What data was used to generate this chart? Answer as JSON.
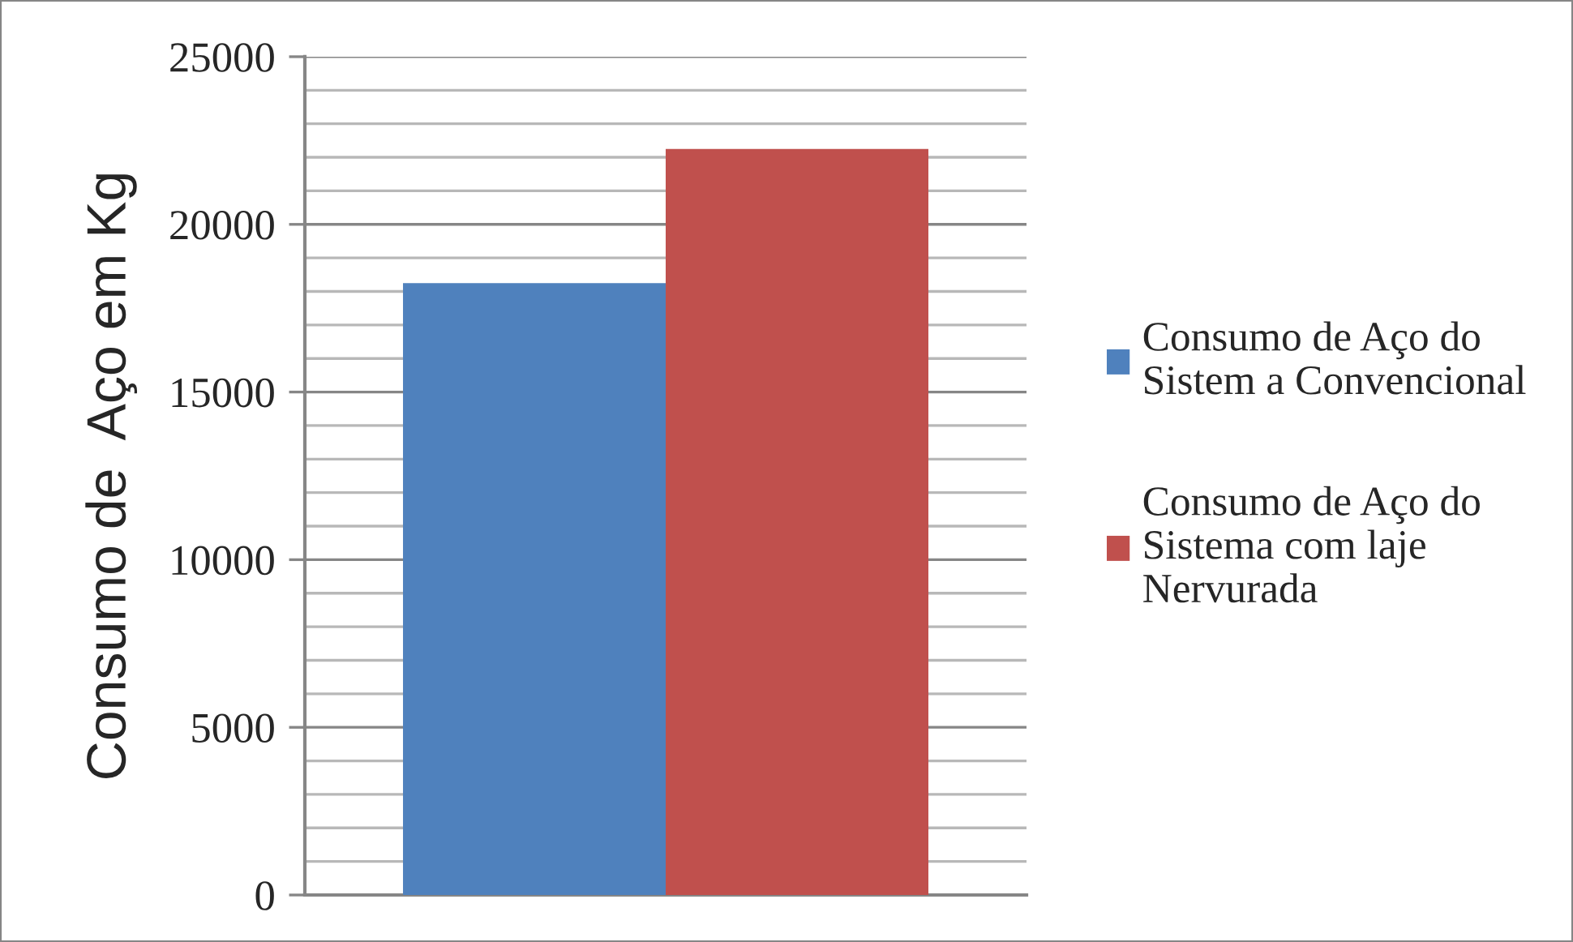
{
  "chart_data": {
    "type": "bar",
    "ylabel": "Consumo de  Aço em Kg",
    "categories": [
      null
    ],
    "series": [
      {
        "name": "Consumo de Aço do\nSistem a Convencional",
        "color": "#4f81bd",
        "values": [
          18250
        ]
      },
      {
        "name": "Consumo de Aço do\nSistema com laje\nNervurada",
        "color": "#c0504d",
        "values": [
          22250
        ]
      }
    ],
    "ylim": [
      0,
      25000
    ],
    "yticks": [
      0,
      {
        "value": 1000,
        "label": null
      },
      {
        "value": 2000,
        "label": null
      },
      {
        "value": 3000,
        "label": null
      },
      {
        "value": 4000,
        "label": null
      },
      5000,
      {
        "value": 6000,
        "label": null
      },
      {
        "value": 7000,
        "label": null
      },
      {
        "value": 8000,
        "label": null
      },
      {
        "value": 9000,
        "label": null
      },
      10000,
      {
        "value": 11000,
        "label": null
      },
      {
        "value": 12000,
        "label": null
      },
      {
        "value": 13000,
        "label": null
      },
      {
        "value": 14000,
        "label": null
      },
      15000,
      {
        "value": 16000,
        "label": null
      },
      {
        "value": 17000,
        "label": null
      },
      {
        "value": 18000,
        "label": null
      },
      {
        "value": 19000,
        "label": null
      },
      20000,
      {
        "value": 21000,
        "label": null
      },
      {
        "value": 22000,
        "label": null
      },
      {
        "value": 23000,
        "label": null
      },
      {
        "value": 24000,
        "label": null
      },
      25000
    ],
    "grid": "y",
    "legend": "right"
  }
}
